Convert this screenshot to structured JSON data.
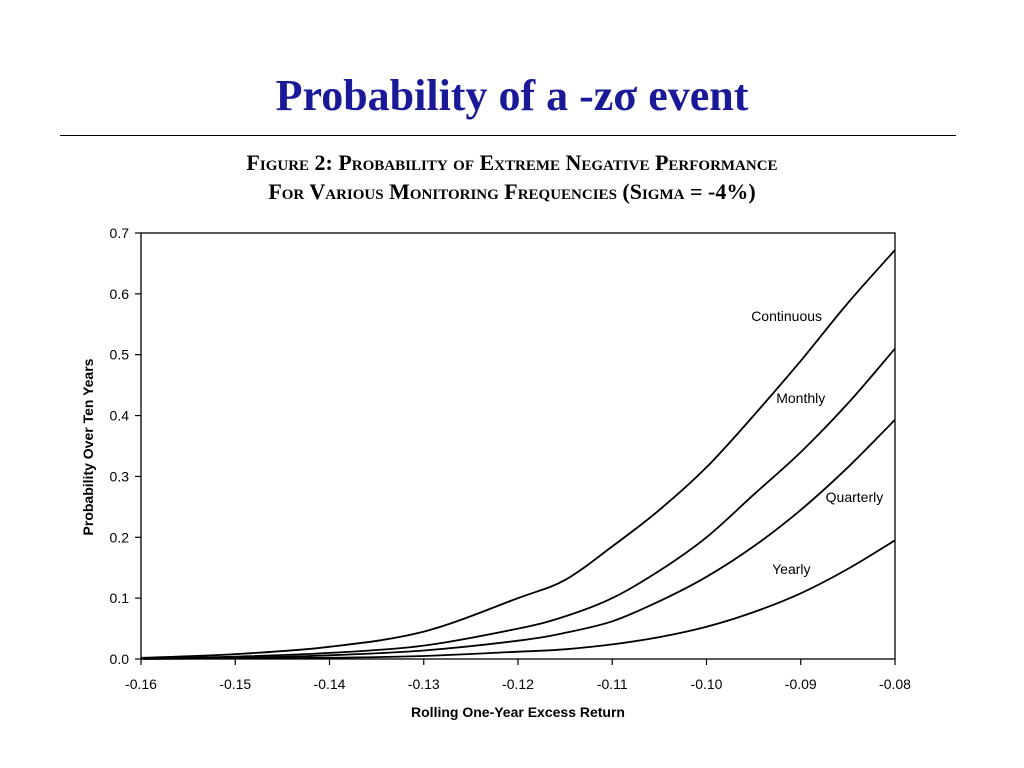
{
  "slide": {
    "title": "Probability of  a -zσ event"
  },
  "figure": {
    "caption_line1": "Figure 2: Probability of Extreme Negative Performance",
    "caption_line2": "For Various Monitoring Frequencies (Sigma = -4%)"
  },
  "chart_data": {
    "type": "line",
    "xlabel": "Rolling One-Year Excess Return",
    "ylabel": "Probability Over Ten Years",
    "xlim": [
      -0.16,
      -0.08
    ],
    "ylim": [
      0,
      0.7
    ],
    "x_ticks": [
      -0.16,
      -0.15,
      -0.14,
      -0.13,
      -0.12,
      -0.11,
      -0.1,
      -0.09,
      -0.08
    ],
    "x_tick_labels": [
      "-0.16",
      "-0.15",
      "-0.14",
      "-0.13",
      "-0.12",
      "-0.11",
      "-0.10",
      "-0.09",
      "-0.08"
    ],
    "y_ticks": [
      0,
      0.1,
      0.2,
      0.3,
      0.4,
      0.5,
      0.6,
      0.7
    ],
    "y_tick_labels": [
      "0.0",
      "0.1",
      "0.2",
      "0.3",
      "0.4",
      "0.5",
      "0.6",
      "0.7"
    ],
    "grid": false,
    "legend": "none",
    "x": [
      -0.16,
      -0.15,
      -0.14,
      -0.13,
      -0.12,
      -0.115,
      -0.11,
      -0.105,
      -0.1,
      -0.095,
      -0.09,
      -0.085,
      -0.08
    ],
    "series": [
      {
        "name": "Continuous",
        "label_at": [
          -0.0915,
          0.555
        ],
        "values": [
          0.002,
          0.008,
          0.02,
          0.045,
          0.1,
          0.13,
          0.185,
          0.245,
          0.315,
          0.4,
          0.49,
          0.585,
          0.672
        ]
      },
      {
        "name": "Monthly",
        "label_at": [
          -0.09,
          0.421
        ],
        "values": [
          0.001,
          0.004,
          0.01,
          0.022,
          0.05,
          0.07,
          0.1,
          0.145,
          0.2,
          0.27,
          0.34,
          0.42,
          0.51
        ]
      },
      {
        "name": "Quarterly",
        "label_at": [
          -0.0843,
          0.258
        ],
        "values": [
          0.0005,
          0.002,
          0.006,
          0.014,
          0.03,
          0.043,
          0.062,
          0.095,
          0.135,
          0.185,
          0.245,
          0.315,
          0.393
        ]
      },
      {
        "name": "Yearly",
        "label_at": [
          -0.091,
          0.14
        ],
        "values": [
          0.0,
          0.001,
          0.002,
          0.005,
          0.012,
          0.016,
          0.024,
          0.036,
          0.053,
          0.077,
          0.108,
          0.148,
          0.195
        ]
      }
    ]
  }
}
